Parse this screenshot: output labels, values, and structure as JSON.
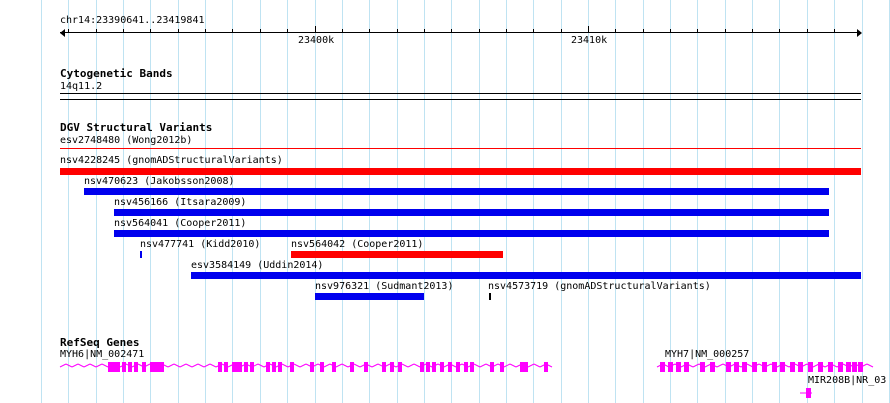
{
  "ruler": {
    "locus": "chr14:23390641..23419841",
    "tick_labels": [
      "23400k",
      "23410k"
    ]
  },
  "cytogenetic": {
    "title": "Cytogenetic Bands",
    "band": "14q11.2"
  },
  "dgv": {
    "title": "DGV Structural Variants",
    "features": [
      {
        "label": "esv2748480 (Wong2012b)",
        "color": "#ff0000"
      },
      {
        "label": "nsv4228245 (gnomADStructuralVariants)",
        "color": "#ff0000"
      },
      {
        "label": "nsv470623 (Jakobsson2008)",
        "color": "#0000ee"
      },
      {
        "label": "nsv456166 (Itsara2009)",
        "color": "#0000ee"
      },
      {
        "label": "nsv564041 (Cooper2011)",
        "color": "#0000ee"
      },
      {
        "label": "nsv477741 (Kidd2010)",
        "color": "#0000ee"
      },
      {
        "label": "nsv564042 (Cooper2011)",
        "color": "#ff0000"
      },
      {
        "label": "esv3584149 (Uddin2014)",
        "color": "#0000ee"
      },
      {
        "label": "nsv976321 (Sudmant2013)",
        "color": "#0000ee"
      },
      {
        "label": "nsv4573719 (gnomADStructuralVariants)",
        "color": "#000000"
      }
    ]
  },
  "refseq": {
    "title": "RefSeq Genes",
    "genes": [
      {
        "label": "MYH6|NM_002471",
        "color": "#ff00ff"
      },
      {
        "label": "MYH7|NM_000257",
        "color": "#ff00ff"
      },
      {
        "label": "MIR208B|NR_03",
        "color": "#ff00ff"
      }
    ]
  }
}
